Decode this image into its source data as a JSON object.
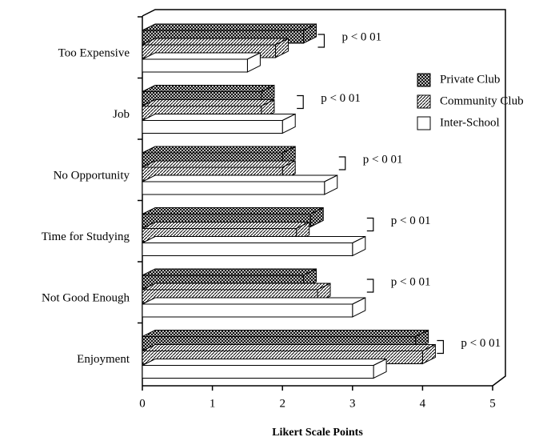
{
  "chart_data": {
    "type": "bar3d_horizontal",
    "xlabel": "Likert Scale Points",
    "categories": [
      "Too Expensive",
      "Job",
      "No Opportunity",
      "Time for Studying",
      "Not Good Enough",
      "Enjoyment"
    ],
    "series": [
      {
        "name": "Private Club",
        "color": "#000000",
        "pattern": "crosshatch",
        "values": [
          2.3,
          1.7,
          2.0,
          2.4,
          2.3,
          3.9
        ]
      },
      {
        "name": "Community Club",
        "color": "#000000",
        "pattern": "diagonal",
        "values": [
          1.9,
          1.7,
          2.0,
          2.2,
          2.5,
          4.0
        ]
      },
      {
        "name": "Inter-School",
        "color": "#ffffff",
        "pattern": "solid",
        "values": [
          1.5,
          2.0,
          2.6,
          3.0,
          3.0,
          3.3
        ]
      }
    ],
    "annotations": [
      "p < 0 01",
      "p < 0 01",
      "p < 0 01",
      "p < 0 01",
      "p < 0 01",
      "p < 0 01"
    ],
    "xlim": [
      0,
      5
    ],
    "xticks": [
      0,
      1,
      2,
      3,
      4,
      5
    ],
    "legend": "upper right"
  }
}
